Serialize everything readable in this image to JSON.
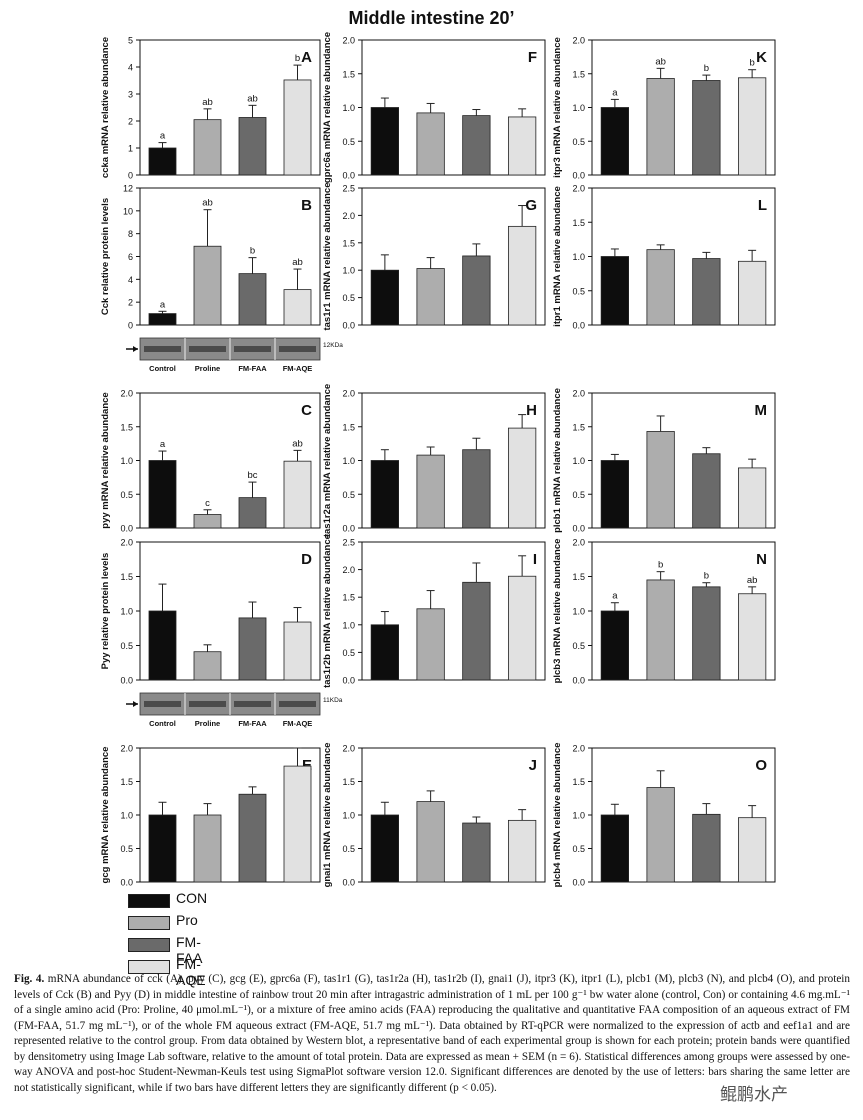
{
  "figure_title": "Middle intestine 20’",
  "colors": {
    "CON": "#0d0d0d",
    "Pro": "#adadad",
    "FM-FAA": "#6a6a6a",
    "FM-AQE": "#e1e1e1"
  },
  "legend": [
    {
      "label": "CON",
      "color": "#0d0d0d"
    },
    {
      "label": "Pro",
      "color": "#adadad"
    },
    {
      "label": "FM-FAA",
      "color": "#6a6a6a"
    },
    {
      "label": "FM-AQE",
      "color": "#e1e1e1"
    }
  ],
  "chart_data": [
    {
      "id": "A",
      "type": "bar",
      "ylabel": "ccka mRNA relative abundance",
      "ylim": [
        0,
        5
      ],
      "yticks": [
        0,
        1,
        2,
        3,
        4,
        5
      ],
      "ytick_labels": [
        "0",
        "1",
        "2",
        "3",
        "4",
        "5"
      ],
      "values": [
        1.0,
        2.05,
        2.13,
        3.52
      ],
      "errors": [
        0.2,
        0.4,
        0.45,
        0.55
      ],
      "letters": [
        "a",
        "ab",
        "ab",
        "b"
      ]
    },
    {
      "id": "F",
      "type": "bar",
      "ylabel": "gprc6a mRNA relative abundance",
      "ylim": [
        0,
        2
      ],
      "yticks": [
        0,
        0.5,
        1,
        1.5,
        2
      ],
      "ytick_labels": [
        "0.0",
        "0.5",
        "1.0",
        "1.5",
        "2.0"
      ],
      "values": [
        1.0,
        0.92,
        0.88,
        0.86
      ],
      "errors": [
        0.14,
        0.14,
        0.09,
        0.12
      ],
      "letters": []
    },
    {
      "id": "K",
      "type": "bar",
      "ylabel": "itpr3 mRNA relative abundance",
      "ylim": [
        0,
        2
      ],
      "yticks": [
        0,
        0.5,
        1,
        1.5,
        2
      ],
      "ytick_labels": [
        "0.0",
        "0.5",
        "1.0",
        "1.5",
        "2.0"
      ],
      "values": [
        1.0,
        1.43,
        1.4,
        1.44
      ],
      "errors": [
        0.12,
        0.15,
        0.08,
        0.12
      ],
      "letters": [
        "a",
        "ab",
        "b",
        "b"
      ]
    },
    {
      "id": "B",
      "type": "bar",
      "ylabel": "Cck relative protein levels",
      "ylim": [
        0,
        12
      ],
      "yticks": [
        0,
        2,
        4,
        6,
        8,
        10,
        12
      ],
      "ytick_labels": [
        "0",
        "2",
        "4",
        "6",
        "8",
        "10",
        "12"
      ],
      "values": [
        1.0,
        6.9,
        4.5,
        3.1
      ],
      "errors": [
        0.2,
        3.2,
        1.4,
        1.8
      ],
      "letters": [
        "a",
        "ab",
        "b",
        "ab"
      ],
      "blot": {
        "marker": "12KDa",
        "lanes": [
          "Control",
          "Proline",
          "FM-FAA",
          "FM-AQE"
        ]
      }
    },
    {
      "id": "G",
      "type": "bar",
      "ylabel": "tas1r1 mRNA relative abundance",
      "ylim": [
        0,
        2.5
      ],
      "yticks": [
        0,
        0.5,
        1,
        1.5,
        2,
        2.5
      ],
      "ytick_labels": [
        "0.0",
        "0.5",
        "1.0",
        "1.5",
        "2.0",
        "2.5"
      ],
      "values": [
        1.0,
        1.03,
        1.26,
        1.8
      ],
      "errors": [
        0.28,
        0.2,
        0.22,
        0.38
      ],
      "letters": []
    },
    {
      "id": "L",
      "type": "bar",
      "ylabel": "itpr1 mRNA relative abundance",
      "ylim": [
        0,
        2
      ],
      "yticks": [
        0,
        0.5,
        1,
        1.5,
        2
      ],
      "ytick_labels": [
        "0.0",
        "0.5",
        "1.0",
        "1.5",
        "2.0"
      ],
      "values": [
        1.0,
        1.1,
        0.97,
        0.93
      ],
      "errors": [
        0.11,
        0.07,
        0.09,
        0.16
      ],
      "letters": []
    },
    {
      "id": "C",
      "type": "bar",
      "ylabel": "pyy mRNA relative abundance",
      "ylim": [
        0,
        2
      ],
      "yticks": [
        0,
        0.5,
        1,
        1.5,
        2
      ],
      "ytick_labels": [
        "0.0",
        "0.5",
        "1.0",
        "1.5",
        "2.0"
      ],
      "values": [
        1.0,
        0.2,
        0.45,
        0.99
      ],
      "errors": [
        0.14,
        0.07,
        0.23,
        0.16
      ],
      "letters": [
        "a",
        "c",
        "bc",
        "ab"
      ]
    },
    {
      "id": "H",
      "type": "bar",
      "ylabel": "tas1r2a mRNA relative abundance",
      "ylim": [
        0,
        2
      ],
      "yticks": [
        0,
        0.5,
        1,
        1.5,
        2
      ],
      "ytick_labels": [
        "0.0",
        "0.5",
        "1.0",
        "1.5",
        "2.0"
      ],
      "values": [
        1.0,
        1.08,
        1.16,
        1.48
      ],
      "errors": [
        0.16,
        0.12,
        0.17,
        0.2
      ],
      "letters": []
    },
    {
      "id": "M",
      "type": "bar",
      "ylabel": "plcb1 mRNA relative abundance",
      "ylim": [
        0,
        2
      ],
      "yticks": [
        0,
        0.5,
        1,
        1.5,
        2
      ],
      "ytick_labels": [
        "0.0",
        "0.5",
        "1.0",
        "1.5",
        "2.0"
      ],
      "values": [
        1.0,
        1.43,
        1.1,
        0.89
      ],
      "errors": [
        0.09,
        0.23,
        0.09,
        0.13
      ],
      "letters": []
    },
    {
      "id": "D",
      "type": "bar",
      "ylabel": "Pyy relative protein levels",
      "ylim": [
        0,
        2
      ],
      "yticks": [
        0,
        0.5,
        1,
        1.5,
        2
      ],
      "ytick_labels": [
        "0.0",
        "0.5",
        "1.0",
        "1.5",
        "2.0"
      ],
      "values": [
        1.0,
        0.41,
        0.9,
        0.84
      ],
      "errors": [
        0.39,
        0.1,
        0.23,
        0.21
      ],
      "letters": [],
      "blot": {
        "marker": "11KDa",
        "lanes": [
          "Control",
          "Proline",
          "FM-FAA",
          "FM-AQE"
        ]
      }
    },
    {
      "id": "I",
      "type": "bar",
      "ylabel": "tas1r2b mRNA relative abundance",
      "ylim": [
        0,
        2.5
      ],
      "yticks": [
        0,
        0.5,
        1,
        1.5,
        2,
        2.5
      ],
      "ytick_labels": [
        "0.0",
        "0.5",
        "1.0",
        "1.5",
        "2.0",
        "2.5"
      ],
      "values": [
        1.0,
        1.29,
        1.77,
        1.88
      ],
      "errors": [
        0.24,
        0.33,
        0.35,
        0.37
      ],
      "letters": []
    },
    {
      "id": "N",
      "type": "bar",
      "ylabel": "plcb3 mRNA relative abundance",
      "ylim": [
        0,
        2
      ],
      "yticks": [
        0,
        0.5,
        1,
        1.5,
        2
      ],
      "ytick_labels": [
        "0.0",
        "0.5",
        "1.0",
        "1.5",
        "2.0"
      ],
      "values": [
        1.0,
        1.45,
        1.35,
        1.25
      ],
      "errors": [
        0.12,
        0.12,
        0.06,
        0.1
      ],
      "letters": [
        "a",
        "b",
        "b",
        "ab"
      ]
    },
    {
      "id": "E",
      "type": "bar",
      "ylabel": "gcg mRNA relative abundance",
      "ylim": [
        0,
        2
      ],
      "yticks": [
        0,
        0.5,
        1,
        1.5,
        2
      ],
      "ytick_labels": [
        "0.0",
        "0.5",
        "1.0",
        "1.5",
        "2.0"
      ],
      "values": [
        1.0,
        1.0,
        1.31,
        1.73
      ],
      "errors": [
        0.19,
        0.17,
        0.11,
        0.45
      ],
      "letters": []
    },
    {
      "id": "J",
      "type": "bar",
      "ylabel": "gnai1 mRNA relative abundance",
      "ylim": [
        0,
        2
      ],
      "yticks": [
        0,
        0.5,
        1,
        1.5,
        2
      ],
      "ytick_labels": [
        "0.0",
        "0.5",
        "1.0",
        "1.5",
        "2.0"
      ],
      "values": [
        1.0,
        1.2,
        0.88,
        0.92
      ],
      "errors": [
        0.19,
        0.16,
        0.09,
        0.16
      ],
      "letters": []
    },
    {
      "id": "O",
      "type": "bar",
      "ylabel": "plcb4 mRNA relative abundance",
      "ylim": [
        0,
        2
      ],
      "yticks": [
        0,
        0.5,
        1,
        1.5,
        2
      ],
      "ytick_labels": [
        "0.0",
        "0.5",
        "1.0",
        "1.5",
        "2.0"
      ],
      "values": [
        1.0,
        1.41,
        1.01,
        0.96
      ],
      "errors": [
        0.16,
        0.25,
        0.16,
        0.18
      ],
      "letters": []
    }
  ],
  "caption": {
    "label": "Fig. 4.",
    "text": "mRNA abundance of cck (A), pyy (C), gcg (E), gprc6a (F), tas1r1 (G), tas1r2a (H), tas1r2b (I), gnai1 (J), itpr3 (K), itpr1 (L), plcb1 (M), plcb3 (N), and plcb4 (O), and protein levels of Cck (B) and Pyy (D) in middle intestine of rainbow trout 20 min after intragastric administration of 1 mL per 100 g⁻¹ bw water alone (control, Con) or containing 4.6 mg.mL⁻¹ of a single amino acid (Pro: Proline, 40 μmol.mL⁻¹), or a mixture of free amino acids (FAA) reproducing the qualitative and quantitative FAA composition of an aqueous extract of FM (FM-FAA, 51.7 mg mL⁻¹), or of the whole FM aqueous extract (FM-AQE, 51.7 mg mL⁻¹). Data obtained by RT-qPCR were normalized to the expression of actb and eef1a1 and are represented relative to the control group. From data obtained by Western blot, a representative band of each experimental group is shown for each protein; protein bands were quantified by densitometry using Image Lab software, relative to the amount of total protein. Data are expressed as mean + SEM (n = 6). Statistical differences among groups were assessed by one-way ANOVA and post-hoc Student-Newman-Keuls test using SigmaPlot software version 12.0. Significant differences are denoted by the use of letters: bars sharing the same letter are not statistically significant, while if two bars have different letters they are significantly different (p < 0.05)."
  },
  "watermark": "鲲鹏水产"
}
